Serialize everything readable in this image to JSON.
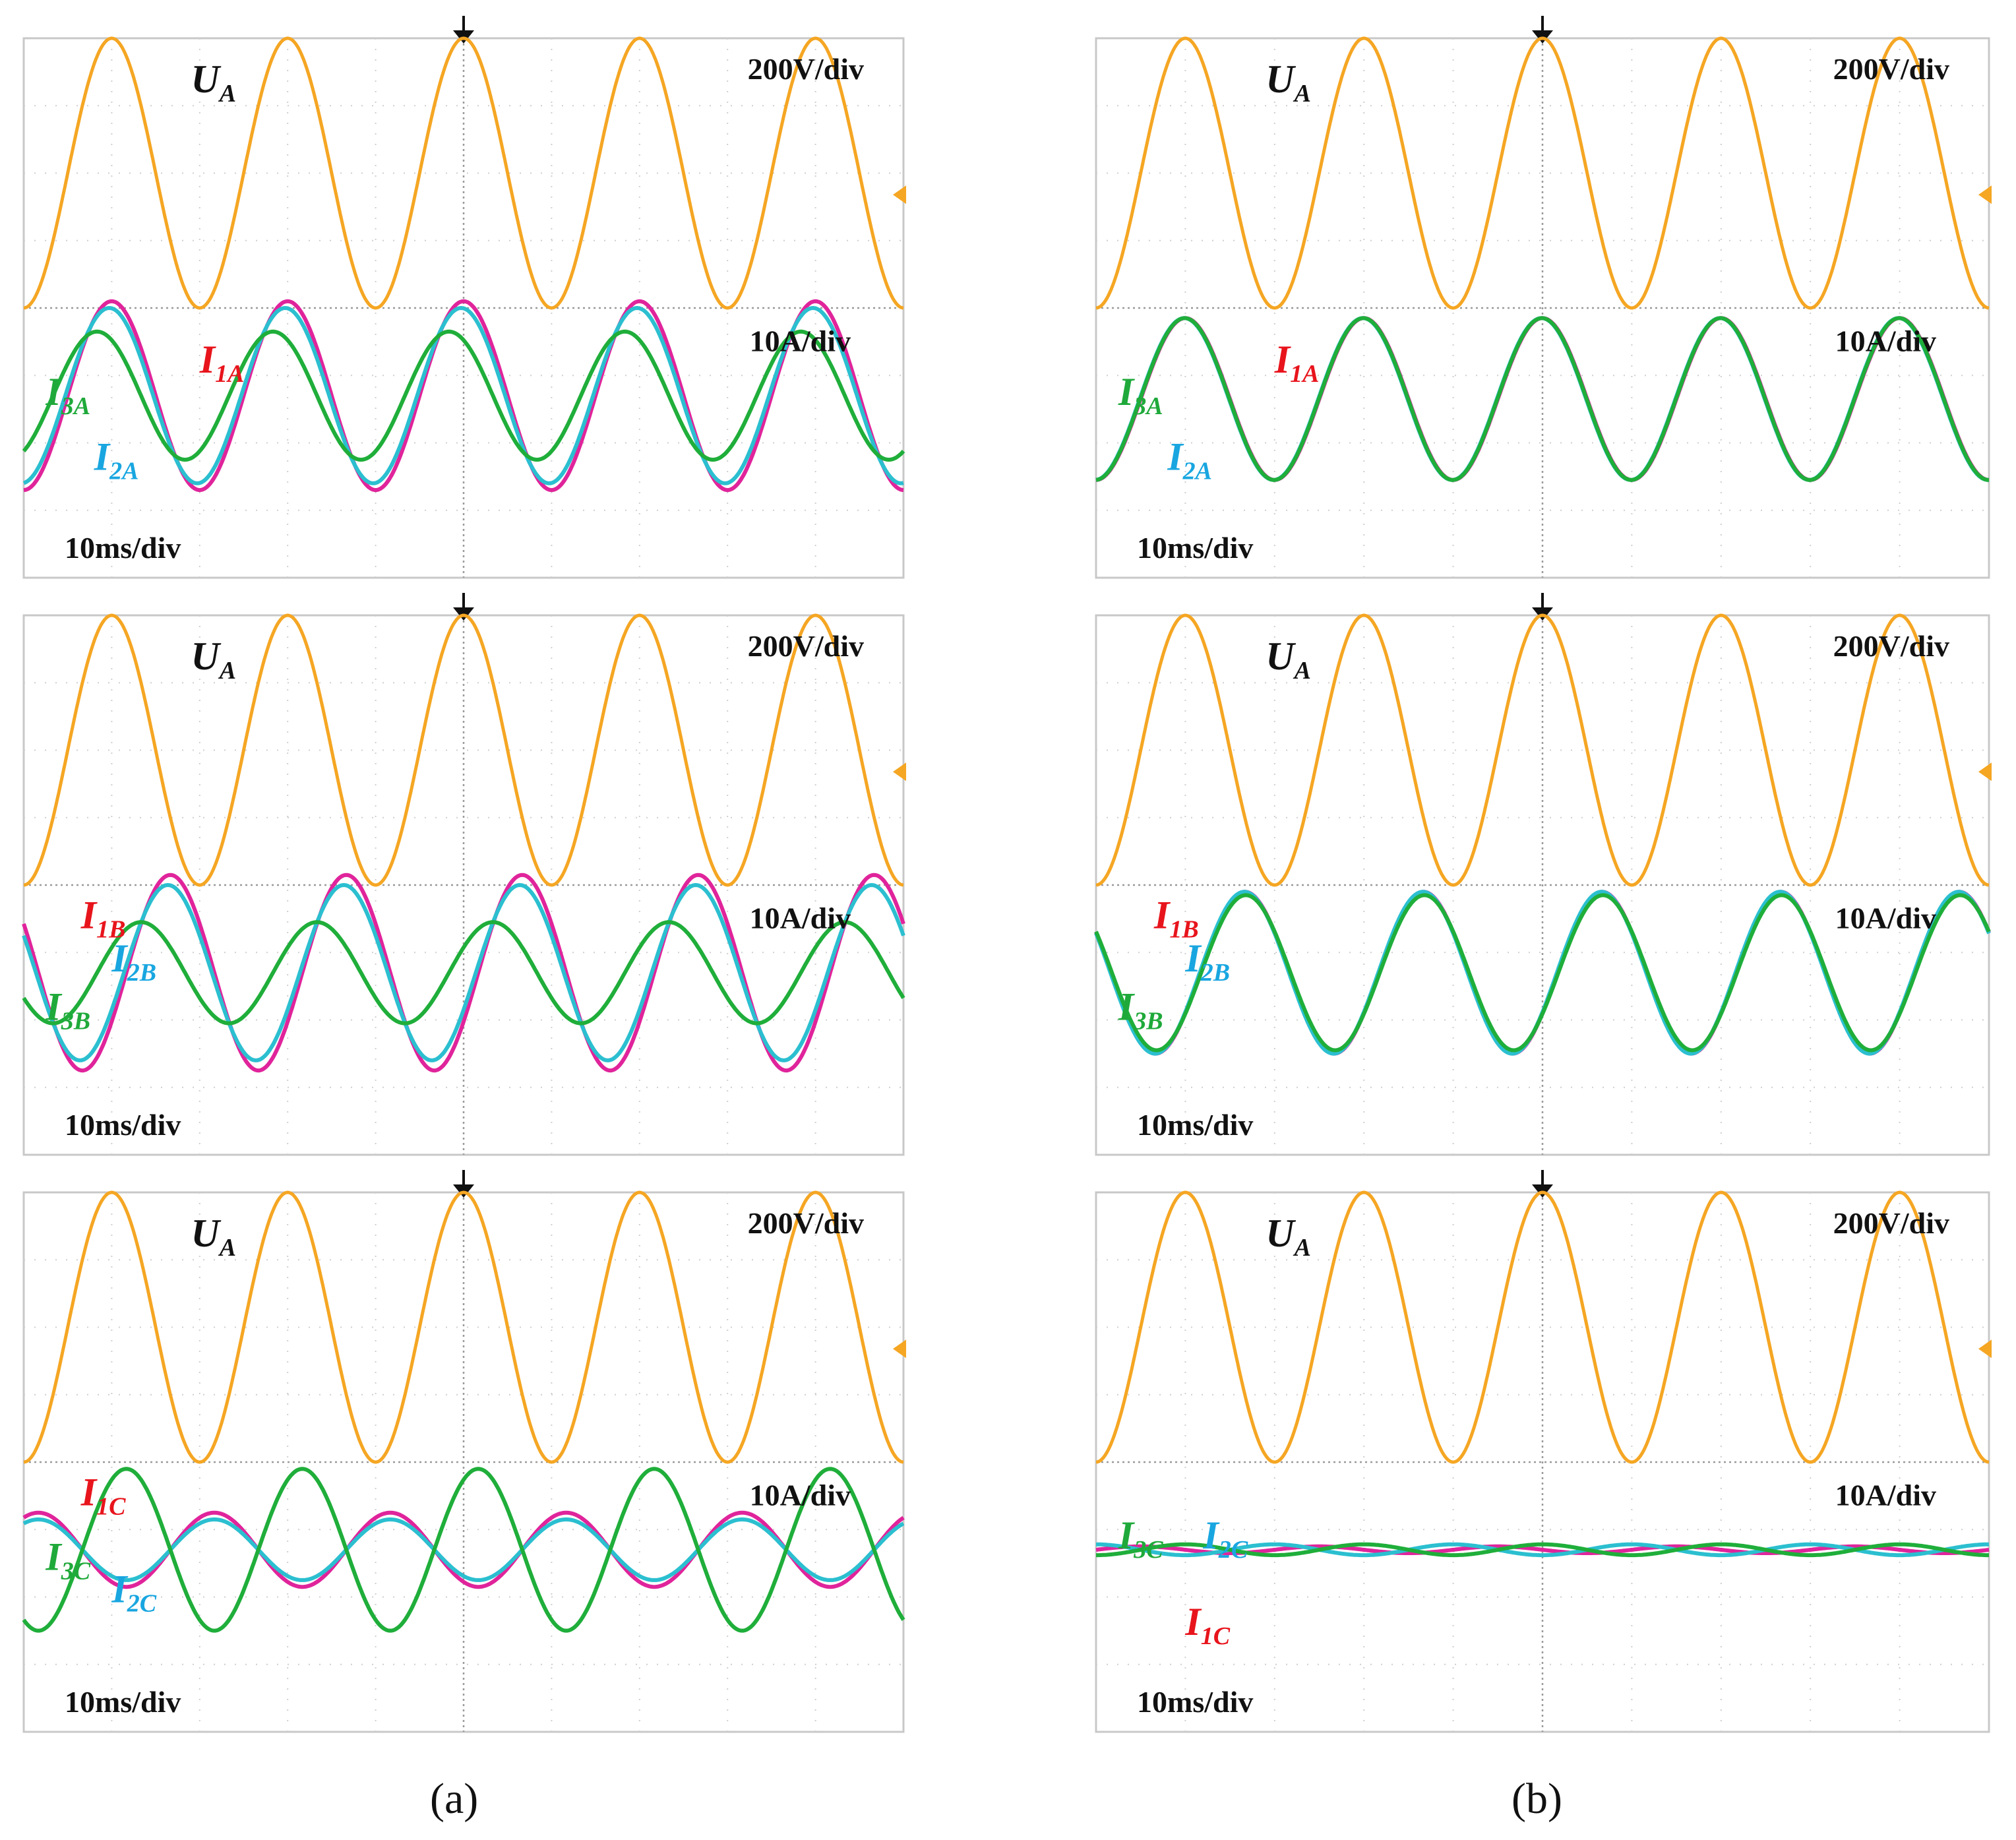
{
  "chart_data": [
    {
      "type": "line",
      "panel": "a-phase-A",
      "column": "(a)",
      "x_range_ms": [
        0,
        100
      ],
      "x_division": "10ms/div",
      "time_label": "10ms/div",
      "voltage_scale": "200V/div",
      "current_scale": "10A/div",
      "series": [
        {
          "name": "U",
          "sub": "A",
          "kind": "voltage",
          "color": "#f5a623",
          "amplitude_div": 2.0,
          "offset_div": 2.0,
          "phase_deg": -90,
          "period_ms": 20
        },
        {
          "name": "I",
          "sub": "1A",
          "kind": "current",
          "color": "#e0249b",
          "amplitude_div": 1.4,
          "offset_div": -1.3,
          "phase_deg": -90,
          "period_ms": 20
        },
        {
          "name": "I",
          "sub": "2A",
          "kind": "current",
          "color": "#2bbfd0",
          "amplitude_div": 1.3,
          "offset_div": -1.3,
          "phase_deg": -85,
          "period_ms": 20
        },
        {
          "name": "I",
          "sub": "3A",
          "kind": "current",
          "color": "#1fae3a",
          "amplitude_div": 0.95,
          "offset_div": -1.3,
          "phase_deg": -60,
          "period_ms": 20
        }
      ],
      "labels": {
        "U": "U",
        "U_sub": "A",
        "I1": "I",
        "I1_sub": "1A",
        "I2": "I",
        "I2_sub": "2A",
        "I3": "I",
        "I3_sub": "3A"
      }
    },
    {
      "type": "line",
      "panel": "a-phase-B",
      "column": "(a)",
      "x_range_ms": [
        0,
        100
      ],
      "time_label": "10ms/div",
      "voltage_scale": "200V/div",
      "current_scale": "10A/div",
      "series": [
        {
          "name": "U",
          "sub": "A",
          "kind": "voltage",
          "color": "#f5a623",
          "amplitude_div": 2.0,
          "offset_div": 2.0,
          "phase_deg": -90,
          "period_ms": 20
        },
        {
          "name": "I",
          "sub": "1B",
          "kind": "current",
          "color": "#e0249b",
          "amplitude_div": 1.45,
          "offset_div": -1.3,
          "phase_deg": 150,
          "period_ms": 20
        },
        {
          "name": "I",
          "sub": "2B",
          "kind": "current",
          "color": "#2bbfd0",
          "amplitude_div": 1.3,
          "offset_div": -1.3,
          "phase_deg": 155,
          "period_ms": 20
        },
        {
          "name": "I",
          "sub": "3B",
          "kind": "current",
          "color": "#1fae3a",
          "amplitude_div": 0.75,
          "offset_div": -1.3,
          "phase_deg": -150,
          "period_ms": 20
        }
      ],
      "labels": {
        "U": "U",
        "U_sub": "A",
        "I1": "I",
        "I1_sub": "1B",
        "I2": "I",
        "I2_sub": "2B",
        "I3": "I",
        "I3_sub": "3B"
      }
    },
    {
      "type": "line",
      "panel": "a-phase-C",
      "column": "(a)",
      "x_range_ms": [
        0,
        100
      ],
      "time_label": "10ms/div",
      "voltage_scale": "200V/div",
      "current_scale": "10A/div",
      "series": [
        {
          "name": "U",
          "sub": "A",
          "kind": "voltage",
          "color": "#f5a623",
          "amplitude_div": 2.0,
          "offset_div": 2.0,
          "phase_deg": -90,
          "period_ms": 20
        },
        {
          "name": "I",
          "sub": "1C",
          "kind": "current",
          "color": "#e0249b",
          "amplitude_div": 0.55,
          "offset_div": -1.3,
          "phase_deg": 60,
          "period_ms": 20
        },
        {
          "name": "I",
          "sub": "2C",
          "kind": "current",
          "color": "#2bbfd0",
          "amplitude_div": 0.45,
          "offset_div": -1.3,
          "phase_deg": 60,
          "period_ms": 20
        },
        {
          "name": "I",
          "sub": "3C",
          "kind": "current",
          "color": "#1fae3a",
          "amplitude_div": 1.2,
          "offset_div": -1.3,
          "phase_deg": -120,
          "period_ms": 20
        }
      ],
      "labels": {
        "U": "U",
        "U_sub": "A",
        "I1": "I",
        "I1_sub": "1C",
        "I2": "I",
        "I2_sub": "2C",
        "I3": "I",
        "I3_sub": "3C"
      }
    },
    {
      "type": "line",
      "panel": "b-phase-A",
      "column": "(b)",
      "x_range_ms": [
        0,
        100
      ],
      "time_label": "10ms/div",
      "voltage_scale": "200V/div",
      "current_scale": "10A/div",
      "series": [
        {
          "name": "U",
          "sub": "A",
          "kind": "voltage",
          "color": "#f5a623",
          "amplitude_div": 2.0,
          "offset_div": 2.0,
          "phase_deg": -90,
          "period_ms": 20
        },
        {
          "name": "I",
          "sub": "1A",
          "kind": "current",
          "color": "#e0249b",
          "amplitude_div": 1.2,
          "offset_div": -1.35,
          "phase_deg": -90,
          "period_ms": 20
        },
        {
          "name": "I",
          "sub": "2A",
          "kind": "current",
          "color": "#2bbfd0",
          "amplitude_div": 1.2,
          "offset_div": -1.35,
          "phase_deg": -88,
          "period_ms": 20
        },
        {
          "name": "I",
          "sub": "3A",
          "kind": "current",
          "color": "#1fae3a",
          "amplitude_div": 1.2,
          "offset_div": -1.35,
          "phase_deg": -89,
          "period_ms": 20
        }
      ],
      "labels": {
        "U": "U",
        "U_sub": "A",
        "I1": "I",
        "I1_sub": "1A",
        "I2": "I",
        "I2_sub": "2A",
        "I3": "I",
        "I3_sub": "3A"
      }
    },
    {
      "type": "line",
      "panel": "b-phase-B",
      "column": "(b)",
      "x_range_ms": [
        0,
        100
      ],
      "time_label": "10ms/div",
      "voltage_scale": "200V/div",
      "current_scale": "10A/div",
      "series": [
        {
          "name": "U",
          "sub": "A",
          "kind": "voltage",
          "color": "#f5a623",
          "amplitude_div": 2.0,
          "offset_div": 2.0,
          "phase_deg": -90,
          "period_ms": 20
        },
        {
          "name": "I",
          "sub": "1B",
          "kind": "current",
          "color": "#e0249b",
          "amplitude_div": 1.2,
          "offset_div": -1.3,
          "phase_deg": 150,
          "period_ms": 20
        },
        {
          "name": "I",
          "sub": "2B",
          "kind": "current",
          "color": "#2bbfd0",
          "amplitude_div": 1.2,
          "offset_div": -1.3,
          "phase_deg": 151,
          "period_ms": 20
        },
        {
          "name": "I",
          "sub": "3B",
          "kind": "current",
          "color": "#1fae3a",
          "amplitude_div": 1.15,
          "offset_div": -1.3,
          "phase_deg": 148,
          "period_ms": 20
        }
      ],
      "labels": {
        "U": "U",
        "U_sub": "A",
        "I1": "I",
        "I1_sub": "1B",
        "I2": "I",
        "I2_sub": "2B",
        "I3": "I",
        "I3_sub": "3B"
      }
    },
    {
      "type": "line",
      "panel": "b-phase-C",
      "column": "(b)",
      "x_range_ms": [
        0,
        100
      ],
      "time_label": "10ms/div",
      "voltage_scale": "200V/div",
      "current_scale": "10A/div",
      "series": [
        {
          "name": "U",
          "sub": "A",
          "kind": "voltage",
          "color": "#f5a623",
          "amplitude_div": 2.0,
          "offset_div": 2.0,
          "phase_deg": -90,
          "period_ms": 20
        },
        {
          "name": "I",
          "sub": "1C",
          "kind": "current",
          "color": "#e0249b",
          "amplitude_div": 0.05,
          "offset_div": -1.3,
          "phase_deg": 0,
          "period_ms": 20
        },
        {
          "name": "I",
          "sub": "2C",
          "kind": "current",
          "color": "#2bbfd0",
          "amplitude_div": 0.08,
          "offset_div": -1.3,
          "phase_deg": 90,
          "period_ms": 20
        },
        {
          "name": "I",
          "sub": "3C",
          "kind": "current",
          "color": "#1fae3a",
          "amplitude_div": 0.08,
          "offset_div": -1.3,
          "phase_deg": -90,
          "period_ms": 20
        }
      ],
      "labels": {
        "U": "U",
        "U_sub": "A",
        "I1": "I",
        "I1_sub": "1C",
        "I2": "I",
        "I2_sub": "2C",
        "I3": "I",
        "I3_sub": "3C"
      }
    }
  ],
  "captions": {
    "a": "(a)",
    "b": "(b)"
  }
}
